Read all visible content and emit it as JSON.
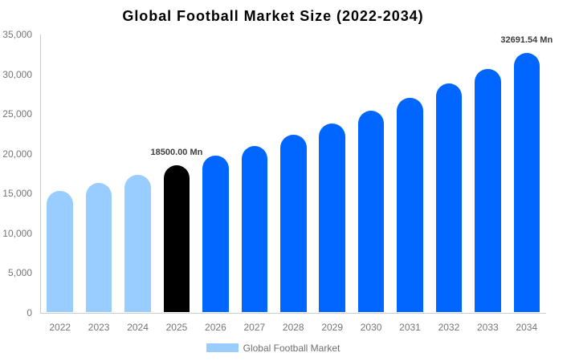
{
  "chart": {
    "title": "Global Football Market Size (2022-2034)",
    "legend_label": "Global Football Market",
    "colors": {
      "historical_bar": "#99ccff",
      "base_year_bar": "#000000",
      "forecast_bar": "#0066ff",
      "axis_line": "#cccccc",
      "tick_text": "#757575",
      "bar_label_text": "#3d3d3d",
      "legend_text": "#6e6e6e",
      "title_text": "#000000",
      "background": "#ffffff"
    }
  },
  "chart_data": {
    "type": "bar",
    "title": "Global Football Market Size (2022-2034)",
    "xlabel": "",
    "ylabel": "",
    "categories": [
      "2022",
      "2023",
      "2024",
      "2025",
      "2026",
      "2027",
      "2028",
      "2029",
      "2030",
      "2031",
      "2032",
      "2033",
      "2034"
    ],
    "series": [
      {
        "name": "Global Football Market",
        "values": [
          15302.08,
          16301.38,
          17365.93,
          18500.0,
          19708.13,
          20995.16,
          22366.24,
          23826.85,
          25382.85,
          27040.47,
          28806.33,
          30687.51,
          32691.54
        ]
      }
    ],
    "unit": "Mn",
    "bar_colors": [
      "#99ccff",
      "#99ccff",
      "#99ccff",
      "#000000",
      "#0066ff",
      "#0066ff",
      "#0066ff",
      "#0066ff",
      "#0066ff",
      "#0066ff",
      "#0066ff",
      "#0066ff",
      "#0066ff"
    ],
    "data_labels": [
      {
        "index": 3,
        "text": "18500.00 Mn"
      },
      {
        "index": 12,
        "text": "32691.54 Mn"
      }
    ],
    "ylim": [
      0,
      35000
    ],
    "ytick_step": 5000,
    "ytick_labels": [
      "0",
      "5,000",
      "10,000",
      "15,000",
      "20,000",
      "25,000",
      "30,000",
      "35,000"
    ],
    "grid": false,
    "legend_position": "bottom-center"
  }
}
